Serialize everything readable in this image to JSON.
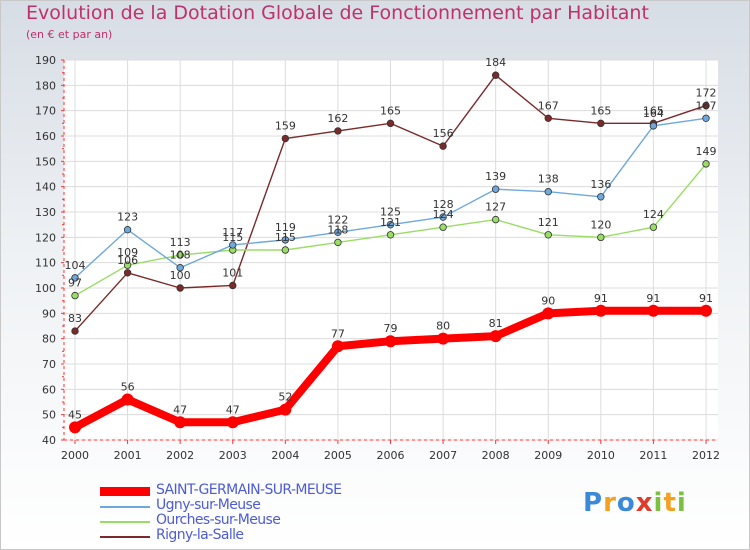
{
  "title": "Evolution de la Dotation Globale de Fonctionnement par Habitant",
  "subtitle": "(en € et par an)",
  "logo": {
    "text": "Proxiti",
    "colors": [
      "#3a8ad8",
      "#f4a020",
      "#e03a2a",
      "#7cc040"
    ]
  },
  "chart_data": {
    "type": "line",
    "x": [
      2000,
      2001,
      2002,
      2003,
      2004,
      2005,
      2006,
      2007,
      2008,
      2009,
      2010,
      2011,
      2012
    ],
    "ylim": [
      40,
      190
    ],
    "yticks": [
      40,
      50,
      60,
      70,
      80,
      90,
      100,
      110,
      120,
      130,
      140,
      150,
      160,
      170,
      180,
      190
    ],
    "grid": true,
    "legend_placement": "bottom-left",
    "series": [
      {
        "name": "SAINT-GERMAIN-SUR-MEUSE",
        "color": "#ff0000",
        "values": [
          45,
          56,
          47,
          47,
          52,
          77,
          79,
          80,
          81,
          90,
          91,
          91,
          91
        ]
      },
      {
        "name": "Ugny-sur-Meuse",
        "color": "#6fa8dc",
        "values": [
          104,
          123,
          108,
          117,
          119,
          122,
          125,
          128,
          139,
          138,
          136,
          164,
          167
        ]
      },
      {
        "name": "Ourches-sur-Meuse",
        "color": "#99dd66",
        "values": [
          97,
          109,
          113,
          115,
          115,
          118,
          121,
          124,
          127,
          121,
          120,
          124,
          149
        ]
      },
      {
        "name": "Rigny-la-Salle",
        "color": "#7a2a2a",
        "values": [
          83,
          106,
          100,
          101,
          159,
          162,
          165,
          156,
          184,
          167,
          165,
          165,
          172
        ]
      }
    ]
  }
}
